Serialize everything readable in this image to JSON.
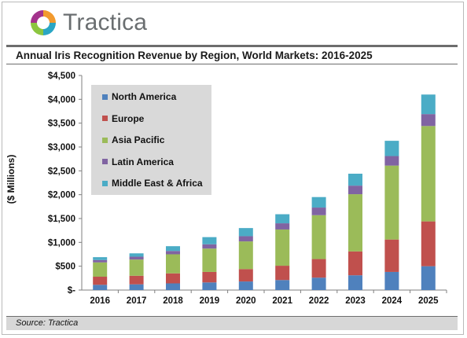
{
  "brand": {
    "name": "Tractica"
  },
  "source": "Source: Tractica",
  "colors": {
    "north_america": "#4f81bd",
    "europe": "#c0504d",
    "asia_pacific": "#9bbb59",
    "latin_america": "#8064a2",
    "middle_east_africa": "#4bacc6"
  },
  "chart_data": {
    "type": "bar",
    "stacked": true,
    "title": "Annual Iris Recognition Revenue by Region, World Markets: 2016-2025",
    "xlabel": "",
    "ylabel": "($ Millions)",
    "ylim": [
      0,
      4500
    ],
    "yticks": [
      0,
      500,
      1000,
      1500,
      2000,
      2500,
      3000,
      3500,
      4000,
      4500
    ],
    "ytick_labels": [
      "$-",
      "$500",
      "$1,000",
      "$1,500",
      "$2,000",
      "$2,500",
      "$3,000",
      "$3,500",
      "$4,000",
      "$4,500"
    ],
    "legend_position": "top-left (inside plot)",
    "grid": false,
    "categories": [
      "2016",
      "2017",
      "2018",
      "2019",
      "2020",
      "2021",
      "2022",
      "2023",
      "2024",
      "2025"
    ],
    "series": [
      {
        "name": "North America",
        "values": [
          110,
          120,
          140,
          160,
          180,
          210,
          260,
          310,
          380,
          500
        ]
      },
      {
        "name": "Europe",
        "values": [
          170,
          180,
          210,
          220,
          260,
          300,
          390,
          500,
          680,
          940
        ]
      },
      {
        "name": "Asia Pacific",
        "values": [
          300,
          340,
          400,
          490,
          580,
          760,
          920,
          1200,
          1550,
          2000
        ]
      },
      {
        "name": "Latin America",
        "values": [
          50,
          60,
          70,
          90,
          110,
          130,
          160,
          180,
          200,
          250
        ]
      },
      {
        "name": "Middle East & Africa",
        "values": [
          60,
          70,
          100,
          150,
          170,
          190,
          220,
          250,
          320,
          410
        ]
      }
    ]
  }
}
